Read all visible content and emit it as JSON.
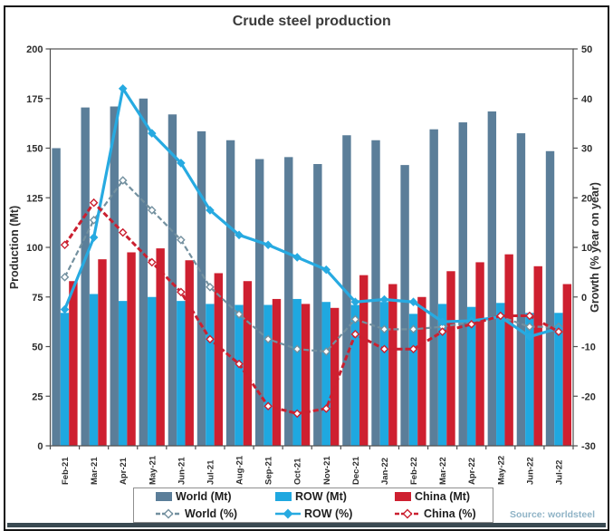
{
  "title": "Crude steel production",
  "source": "Source: worldsteel",
  "axes": {
    "left_label": "Production (Mt)",
    "right_label": "Growth (% year on year)",
    "left_ticks": [
      0,
      25,
      50,
      75,
      100,
      125,
      150,
      175,
      200
    ],
    "right_ticks": [
      -30,
      -20,
      -10,
      0,
      10,
      20,
      30,
      40,
      50
    ],
    "left_range": [
      0,
      200
    ],
    "right_range": [
      -30,
      50
    ]
  },
  "legend": {
    "items": [
      {
        "label": "World (Mt)",
        "type": "bar",
        "color": "#5b7e99"
      },
      {
        "label": "ROW (Mt)",
        "type": "bar",
        "color": "#1fa8e0"
      },
      {
        "label": "China (Mt)",
        "type": "bar",
        "color": "#ce2030"
      },
      {
        "label": "World (%)",
        "type": "line",
        "color": "#73909f",
        "dashed": true,
        "marker_fill": "#ffffff"
      },
      {
        "label": "ROW (%)",
        "type": "line",
        "color": "#27aae1",
        "dashed": false,
        "marker_fill": "#27aae1"
      },
      {
        "label": "China (%)",
        "type": "line",
        "color": "#cb2030",
        "dashed": true,
        "marker_fill": "#ffffff"
      }
    ]
  },
  "chart_data": {
    "type": "combo-bar-line",
    "categories": [
      "Feb-21",
      "Mar-21",
      "Apr-21",
      "May-21",
      "Jun-21",
      "Jul-21",
      "Aug-21",
      "Sep-21",
      "Oct-21",
      "Nov-21",
      "Dec-21",
      "Jan-22",
      "Feb-22",
      "Mar-22",
      "Apr-22",
      "May-22",
      "Jun-22",
      "Jul-22"
    ],
    "bar_series": [
      {
        "name": "World (Mt)",
        "axis": "left",
        "color": "#5b7e99",
        "values": [
          150,
          170.5,
          171,
          175,
          167,
          158.5,
          154,
          144.5,
          145.5,
          142,
          156.5,
          154,
          141.5,
          159.5,
          163,
          168.5,
          157.5,
          148.5
        ]
      },
      {
        "name": "ROW (Mt)",
        "axis": "left",
        "color": "#1fa8e0",
        "values": [
          67,
          76.5,
          73,
          75,
          73,
          71.5,
          71,
          71,
          74,
          72.5,
          71,
          72.5,
          66.5,
          71.5,
          70,
          72,
          67,
          67
        ]
      },
      {
        "name": "China (Mt)",
        "axis": "left",
        "color": "#ce2030",
        "values": [
          83,
          94,
          97.5,
          99.5,
          93.5,
          87,
          83,
          74,
          71.5,
          69.5,
          86,
          81.5,
          75,
          88,
          92.5,
          96.5,
          90.5,
          81.5
        ]
      }
    ],
    "line_series": [
      {
        "name": "World (%)",
        "axis": "right",
        "color": "#73909f",
        "style": "dashed",
        "stroke_width": 2.2,
        "marker_fill": "#ffffff",
        "values": [
          4,
          15.5,
          23.5,
          17.5,
          11.5,
          2,
          -3.5,
          -8.5,
          -10.5,
          -11,
          -4.5,
          -6.5,
          -6.5,
          -6,
          -5,
          -4,
          -6,
          -6
        ]
      },
      {
        "name": "ROW (%)",
        "axis": "right",
        "color": "#27aae1",
        "style": "solid",
        "stroke_width": 3.2,
        "marker_fill": "#27aae1",
        "values": [
          -2.5,
          12,
          42,
          33,
          27,
          17.5,
          12.5,
          10.5,
          8,
          5.5,
          -1,
          -0.5,
          -1,
          -5,
          -4.8,
          -4,
          -8,
          -6.3
        ]
      },
      {
        "name": "China (%)",
        "axis": "right",
        "color": "#cb2030",
        "style": "dashed",
        "stroke_width": 3,
        "marker_fill": "#ffffff",
        "values": [
          10.5,
          19,
          13,
          7,
          1,
          -8.5,
          -13.5,
          -22,
          -23.5,
          -22.5,
          -7.5,
          -10.5,
          -10.5,
          -7,
          -5.5,
          -3.8,
          -3.8,
          -7
        ]
      }
    ],
    "legend_position": "bottom",
    "grid": false
  }
}
